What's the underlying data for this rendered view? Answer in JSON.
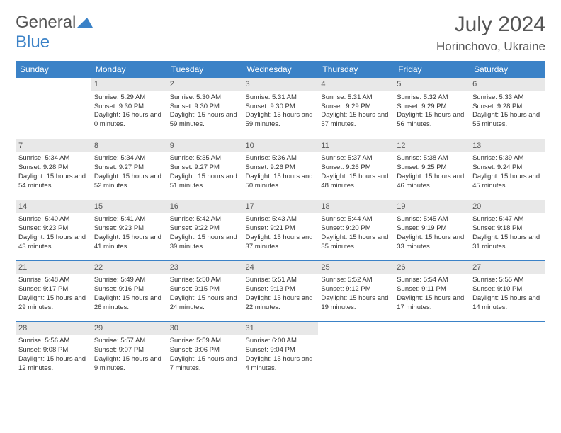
{
  "brand": {
    "part1": "General",
    "part2": "Blue"
  },
  "title": "July 2024",
  "location": "Horinchovo, Ukraine",
  "colors": {
    "header_bg": "#3b82c7",
    "header_text": "#ffffff",
    "daynum_bg": "#e8e8e8",
    "border": "#3b82c7",
    "text": "#333333",
    "background": "#ffffff"
  },
  "weekdays": [
    "Sunday",
    "Monday",
    "Tuesday",
    "Wednesday",
    "Thursday",
    "Friday",
    "Saturday"
  ],
  "weeks": [
    [
      {
        "blank": true
      },
      {
        "day": "1",
        "sunrise": "Sunrise: 5:29 AM",
        "sunset": "Sunset: 9:30 PM",
        "daylight": "Daylight: 16 hours and 0 minutes."
      },
      {
        "day": "2",
        "sunrise": "Sunrise: 5:30 AM",
        "sunset": "Sunset: 9:30 PM",
        "daylight": "Daylight: 15 hours and 59 minutes."
      },
      {
        "day": "3",
        "sunrise": "Sunrise: 5:31 AM",
        "sunset": "Sunset: 9:30 PM",
        "daylight": "Daylight: 15 hours and 59 minutes."
      },
      {
        "day": "4",
        "sunrise": "Sunrise: 5:31 AM",
        "sunset": "Sunset: 9:29 PM",
        "daylight": "Daylight: 15 hours and 57 minutes."
      },
      {
        "day": "5",
        "sunrise": "Sunrise: 5:32 AM",
        "sunset": "Sunset: 9:29 PM",
        "daylight": "Daylight: 15 hours and 56 minutes."
      },
      {
        "day": "6",
        "sunrise": "Sunrise: 5:33 AM",
        "sunset": "Sunset: 9:28 PM",
        "daylight": "Daylight: 15 hours and 55 minutes."
      }
    ],
    [
      {
        "day": "7",
        "sunrise": "Sunrise: 5:34 AM",
        "sunset": "Sunset: 9:28 PM",
        "daylight": "Daylight: 15 hours and 54 minutes."
      },
      {
        "day": "8",
        "sunrise": "Sunrise: 5:34 AM",
        "sunset": "Sunset: 9:27 PM",
        "daylight": "Daylight: 15 hours and 52 minutes."
      },
      {
        "day": "9",
        "sunrise": "Sunrise: 5:35 AM",
        "sunset": "Sunset: 9:27 PM",
        "daylight": "Daylight: 15 hours and 51 minutes."
      },
      {
        "day": "10",
        "sunrise": "Sunrise: 5:36 AM",
        "sunset": "Sunset: 9:26 PM",
        "daylight": "Daylight: 15 hours and 50 minutes."
      },
      {
        "day": "11",
        "sunrise": "Sunrise: 5:37 AM",
        "sunset": "Sunset: 9:26 PM",
        "daylight": "Daylight: 15 hours and 48 minutes."
      },
      {
        "day": "12",
        "sunrise": "Sunrise: 5:38 AM",
        "sunset": "Sunset: 9:25 PM",
        "daylight": "Daylight: 15 hours and 46 minutes."
      },
      {
        "day": "13",
        "sunrise": "Sunrise: 5:39 AM",
        "sunset": "Sunset: 9:24 PM",
        "daylight": "Daylight: 15 hours and 45 minutes."
      }
    ],
    [
      {
        "day": "14",
        "sunrise": "Sunrise: 5:40 AM",
        "sunset": "Sunset: 9:23 PM",
        "daylight": "Daylight: 15 hours and 43 minutes."
      },
      {
        "day": "15",
        "sunrise": "Sunrise: 5:41 AM",
        "sunset": "Sunset: 9:23 PM",
        "daylight": "Daylight: 15 hours and 41 minutes."
      },
      {
        "day": "16",
        "sunrise": "Sunrise: 5:42 AM",
        "sunset": "Sunset: 9:22 PM",
        "daylight": "Daylight: 15 hours and 39 minutes."
      },
      {
        "day": "17",
        "sunrise": "Sunrise: 5:43 AM",
        "sunset": "Sunset: 9:21 PM",
        "daylight": "Daylight: 15 hours and 37 minutes."
      },
      {
        "day": "18",
        "sunrise": "Sunrise: 5:44 AM",
        "sunset": "Sunset: 9:20 PM",
        "daylight": "Daylight: 15 hours and 35 minutes."
      },
      {
        "day": "19",
        "sunrise": "Sunrise: 5:45 AM",
        "sunset": "Sunset: 9:19 PM",
        "daylight": "Daylight: 15 hours and 33 minutes."
      },
      {
        "day": "20",
        "sunrise": "Sunrise: 5:47 AM",
        "sunset": "Sunset: 9:18 PM",
        "daylight": "Daylight: 15 hours and 31 minutes."
      }
    ],
    [
      {
        "day": "21",
        "sunrise": "Sunrise: 5:48 AM",
        "sunset": "Sunset: 9:17 PM",
        "daylight": "Daylight: 15 hours and 29 minutes."
      },
      {
        "day": "22",
        "sunrise": "Sunrise: 5:49 AM",
        "sunset": "Sunset: 9:16 PM",
        "daylight": "Daylight: 15 hours and 26 minutes."
      },
      {
        "day": "23",
        "sunrise": "Sunrise: 5:50 AM",
        "sunset": "Sunset: 9:15 PM",
        "daylight": "Daylight: 15 hours and 24 minutes."
      },
      {
        "day": "24",
        "sunrise": "Sunrise: 5:51 AM",
        "sunset": "Sunset: 9:13 PM",
        "daylight": "Daylight: 15 hours and 22 minutes."
      },
      {
        "day": "25",
        "sunrise": "Sunrise: 5:52 AM",
        "sunset": "Sunset: 9:12 PM",
        "daylight": "Daylight: 15 hours and 19 minutes."
      },
      {
        "day": "26",
        "sunrise": "Sunrise: 5:54 AM",
        "sunset": "Sunset: 9:11 PM",
        "daylight": "Daylight: 15 hours and 17 minutes."
      },
      {
        "day": "27",
        "sunrise": "Sunrise: 5:55 AM",
        "sunset": "Sunset: 9:10 PM",
        "daylight": "Daylight: 15 hours and 14 minutes."
      }
    ],
    [
      {
        "day": "28",
        "sunrise": "Sunrise: 5:56 AM",
        "sunset": "Sunset: 9:08 PM",
        "daylight": "Daylight: 15 hours and 12 minutes."
      },
      {
        "day": "29",
        "sunrise": "Sunrise: 5:57 AM",
        "sunset": "Sunset: 9:07 PM",
        "daylight": "Daylight: 15 hours and 9 minutes."
      },
      {
        "day": "30",
        "sunrise": "Sunrise: 5:59 AM",
        "sunset": "Sunset: 9:06 PM",
        "daylight": "Daylight: 15 hours and 7 minutes."
      },
      {
        "day": "31",
        "sunrise": "Sunrise: 6:00 AM",
        "sunset": "Sunset: 9:04 PM",
        "daylight": "Daylight: 15 hours and 4 minutes."
      },
      {
        "blank": true
      },
      {
        "blank": true
      },
      {
        "blank": true
      }
    ]
  ]
}
